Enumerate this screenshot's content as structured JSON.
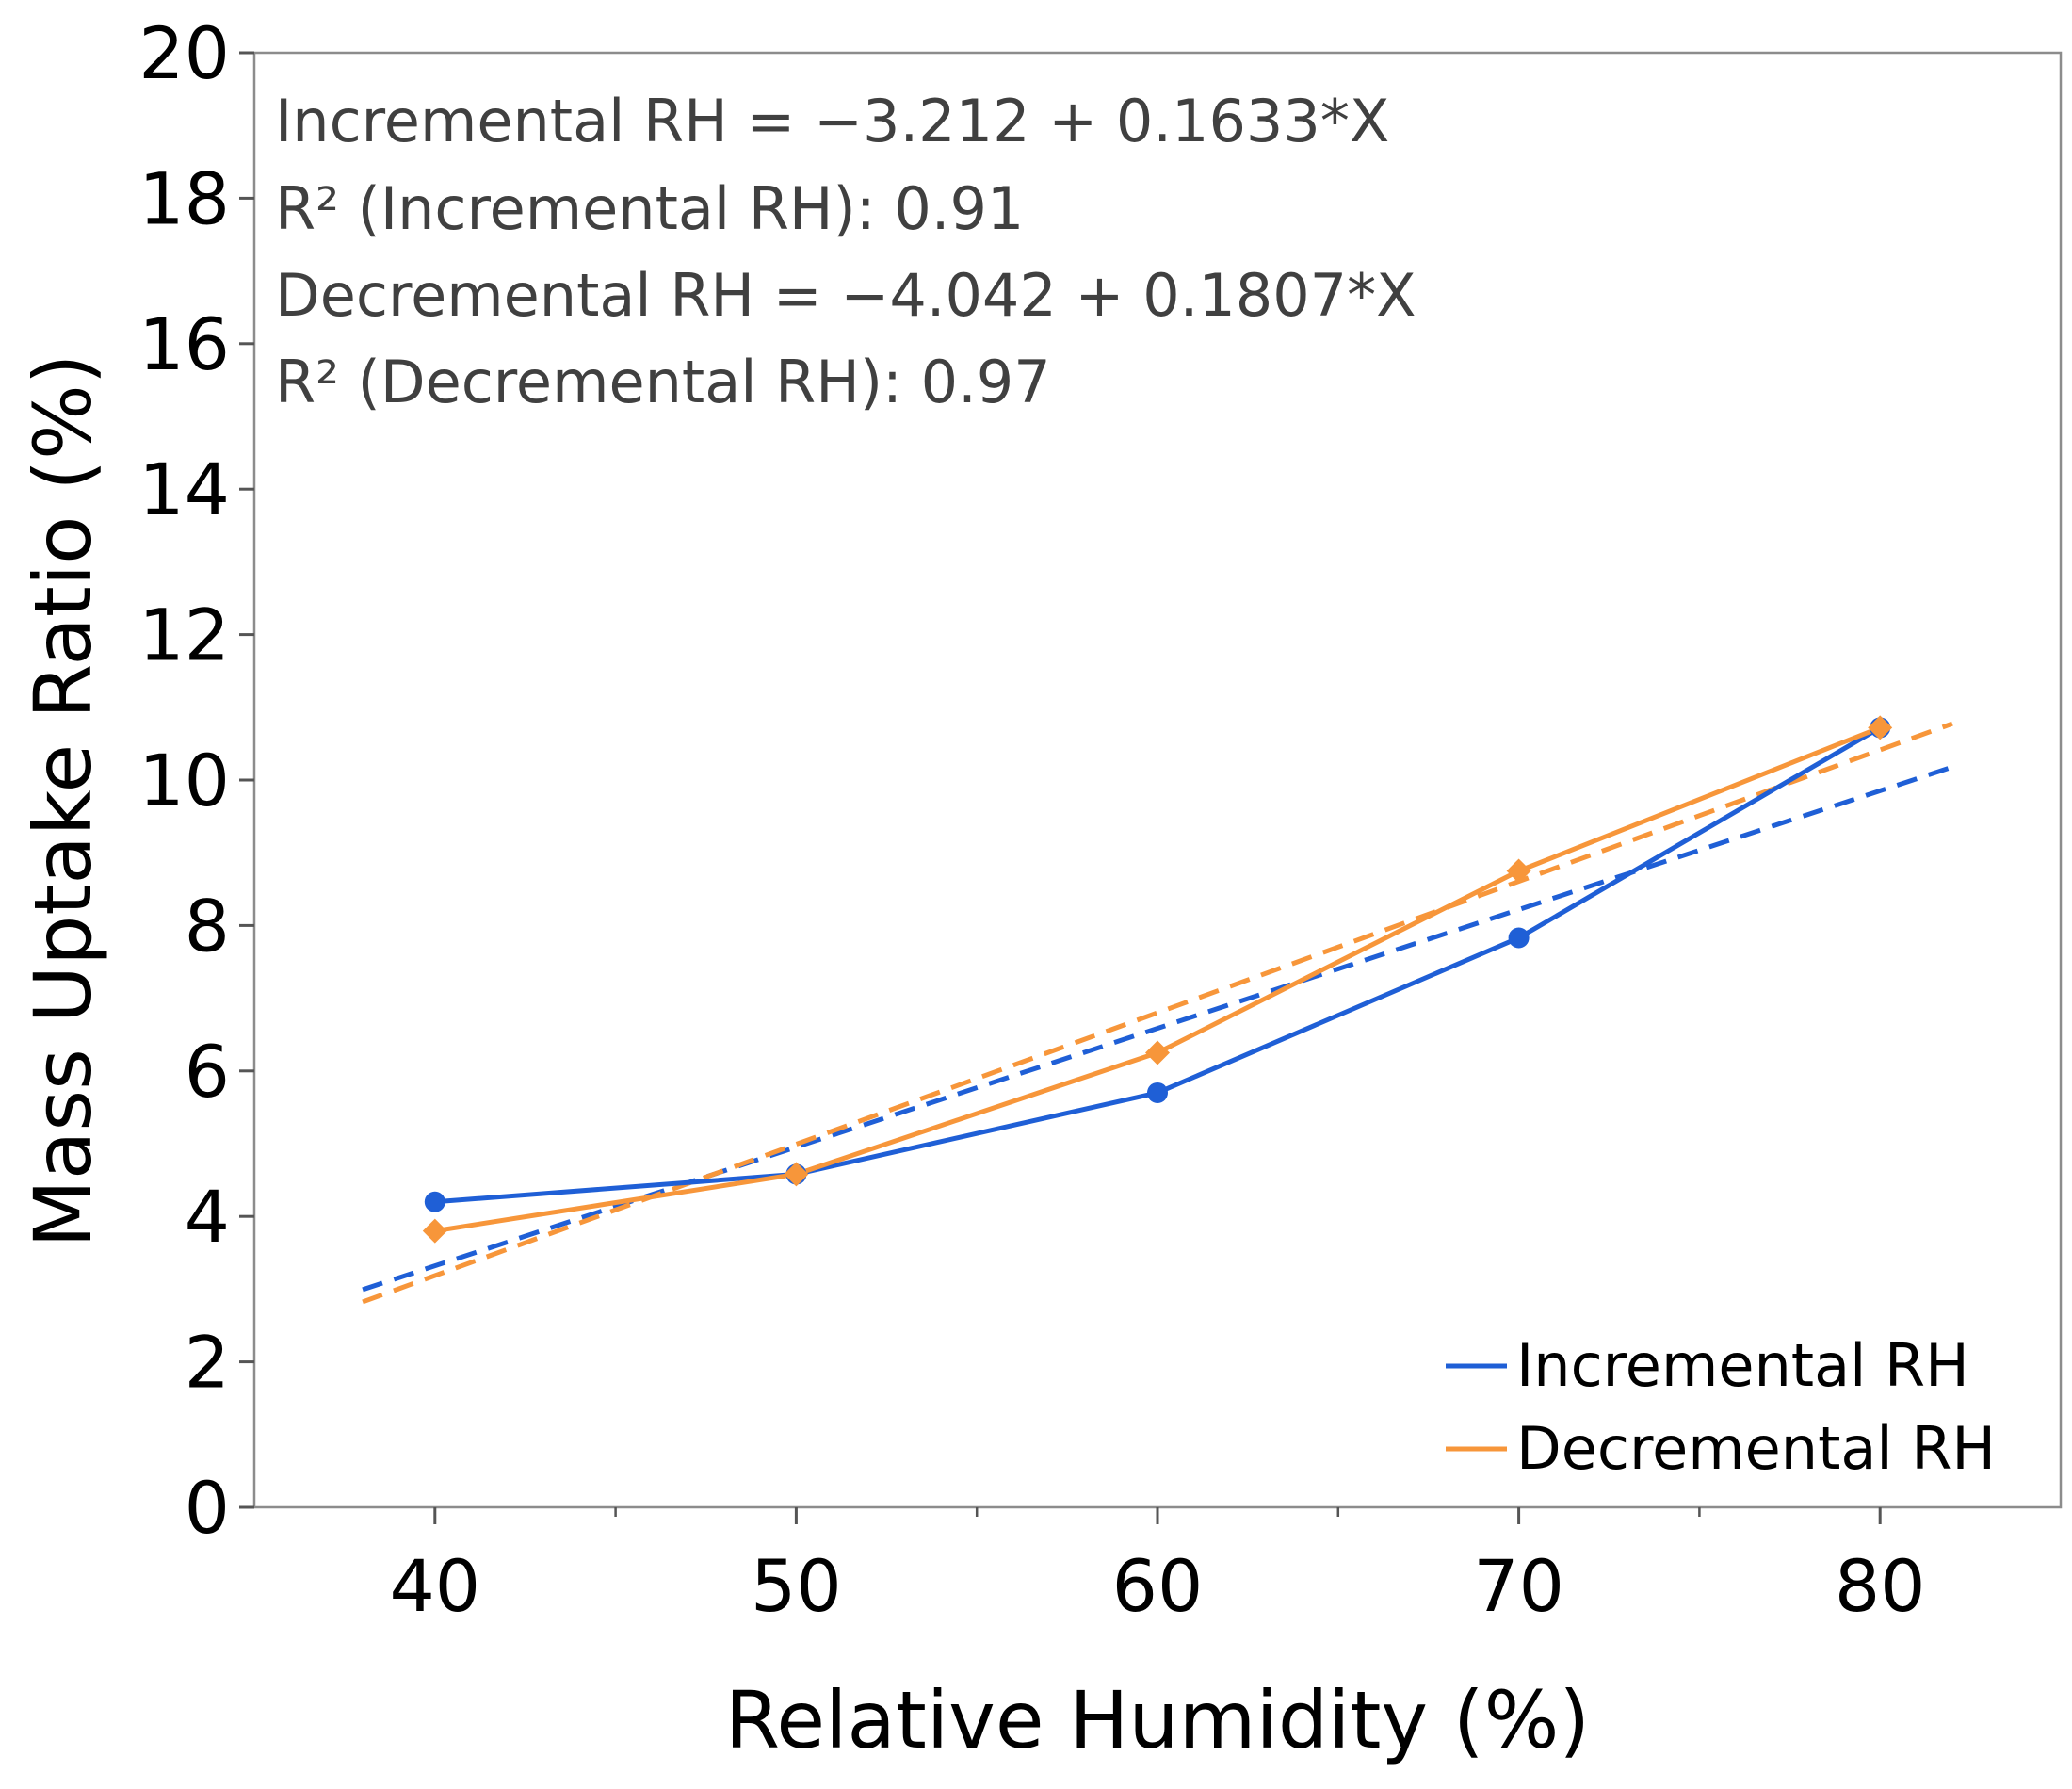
{
  "chart_data": {
    "type": "line",
    "title": "",
    "xlabel": "Relative Humidity (%)",
    "ylabel": "Mass Uptake Ratio (%)",
    "xlim": [
      35,
      85
    ],
    "ylim": [
      0,
      20
    ],
    "x_major_ticks": [
      40,
      50,
      60,
      70,
      80
    ],
    "x_tick_labels": [
      "40",
      "50",
      "60",
      "70",
      "80"
    ],
    "x_minor_ticks": [
      45,
      55,
      65,
      75
    ],
    "y_ticks": [
      0,
      2,
      4,
      6,
      8,
      10,
      12,
      14,
      16,
      18,
      20
    ],
    "y_tick_labels": [
      "0",
      "2",
      "4",
      "6",
      "8",
      "10",
      "12",
      "14",
      "16",
      "18",
      "20"
    ],
    "grid": false,
    "legend_position": "bottom-right",
    "series": [
      {
        "name": "Incremental RH",
        "color": "#1f5fd6",
        "marker": "circle",
        "x": [
          40,
          50,
          60,
          70,
          80
        ],
        "values": [
          4.2,
          4.58,
          5.7,
          7.83,
          10.72
        ],
        "fit": {
          "intercept": -3.212,
          "slope": 0.1633,
          "x_range": [
            38,
            82
          ]
        }
      },
      {
        "name": "Decremental RH",
        "color": "#f7963a",
        "marker": "diamond",
        "x": [
          40,
          50,
          60,
          70,
          80
        ],
        "values": [
          3.8,
          4.58,
          6.25,
          8.75,
          10.72
        ],
        "fit": {
          "intercept": -4.042,
          "slope": 0.1807,
          "x_range": [
            38,
            82
          ]
        }
      }
    ],
    "annotations": [
      "Incremental RH = −3.212 + 0.1633*X",
      "R² (Incremental RH): 0.91",
      "Decremental RH = −4.042 + 0.1807*X",
      "R² (Decremental RH): 0.97"
    ]
  }
}
